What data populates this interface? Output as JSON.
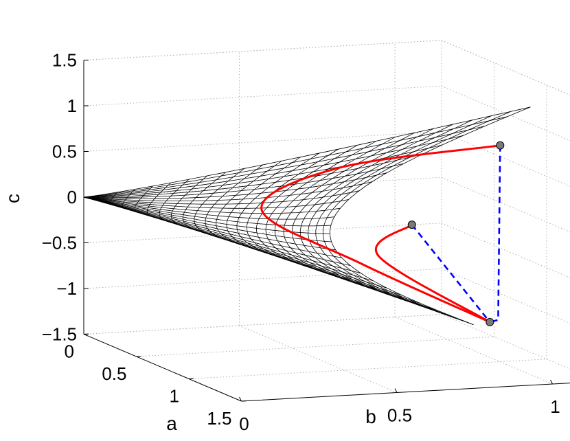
{
  "chart_data": {
    "type": "surface3d",
    "title": "",
    "xlabel": "a",
    "ylabel": "b",
    "zlabel": "c",
    "xlim": [
      0,
      1.5
    ],
    "ylim": [
      0,
      1.15
    ],
    "zlim": [
      -1.5,
      1.5
    ],
    "x_ticks": [
      "0",
      "0.5",
      "1",
      "1.5"
    ],
    "y_ticks": [
      "0",
      "0.5",
      "1"
    ],
    "z_ticks": [
      "1.5",
      "1",
      "0.5",
      "0",
      "−0.5",
      "−1",
      "−1.5"
    ],
    "grid": true,
    "surface": {
      "description_free": true,
      "apex": [
        0,
        0,
        0
      ],
      "mesh_color": "#000000",
      "u_lines": 24,
      "v_lines": 26
    },
    "series": [
      {
        "style": "solid",
        "color": "#ff0000",
        "points": [
          [
            1.15,
            0.95,
            0.95
          ],
          [
            0.7,
            0.58,
            0.55
          ],
          [
            0.45,
            0.42,
            0.0
          ],
          [
            0.72,
            0.65,
            -0.5
          ],
          [
            1.2,
            0.9,
            -0.95
          ]
        ]
      },
      {
        "style": "solid",
        "color": "#ff0000",
        "points": [
          [
            1.05,
            0.7,
            0.08
          ],
          [
            0.85,
            0.66,
            -0.35
          ],
          [
            1.2,
            0.9,
            -0.95
          ]
        ]
      },
      {
        "style": "dashed",
        "color": "#0000ff",
        "points": [
          [
            1.15,
            0.95,
            0.95
          ],
          [
            1.22,
            0.92,
            -0.92
          ],
          [
            1.2,
            0.9,
            -0.95
          ]
        ]
      },
      {
        "style": "dashed",
        "color": "#0000ff",
        "points": [
          [
            1.05,
            0.7,
            0.08
          ],
          [
            1.2,
            0.9,
            -0.95
          ]
        ]
      }
    ],
    "markers": {
      "color": "#7a7a7a",
      "points": [
        [
          1.15,
          0.95,
          0.95
        ],
        [
          1.05,
          0.7,
          0.08
        ],
        [
          1.2,
          0.9,
          -0.95
        ]
      ]
    }
  }
}
